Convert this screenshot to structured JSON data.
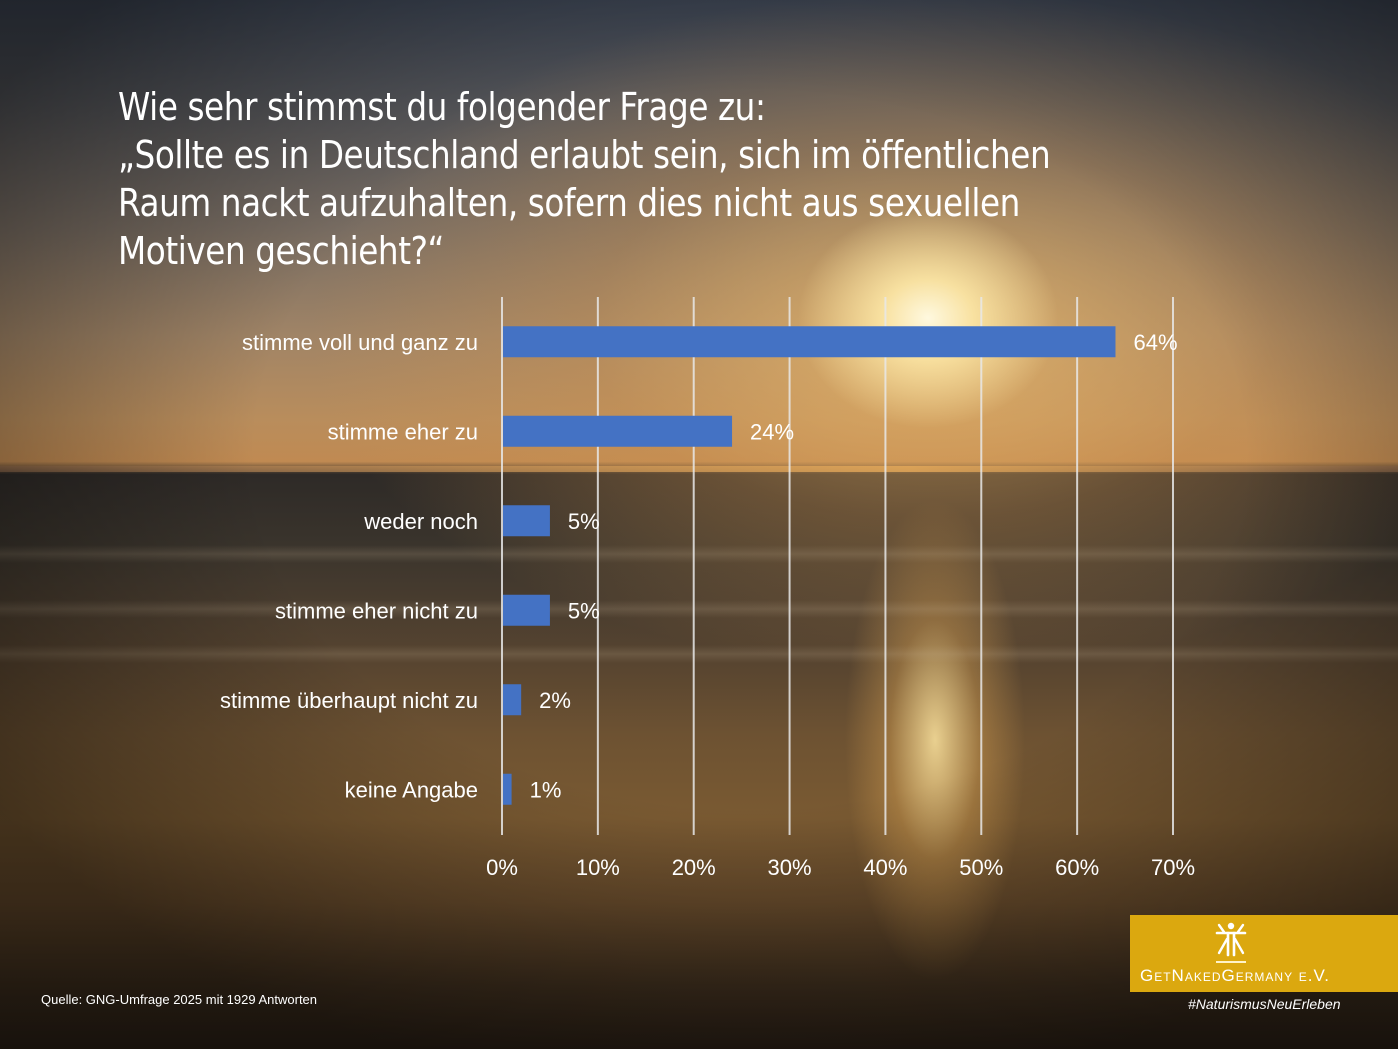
{
  "title": {
    "lines": [
      "Wie sehr stimmst du folgender Frage zu:",
      "„Sollte es in Deutschland erlaubt sein, sich im öffentlichen",
      "Raum nackt aufzuhalten, sofern dies nicht aus sexuellen",
      "Motiven geschieht?“"
    ]
  },
  "chart_data": {
    "type": "bar",
    "orientation": "horizontal",
    "title": "Wie sehr stimmst du folgender Frage zu: „Sollte es in Deutschland erlaubt sein, sich im öffentlichen Raum nackt aufzuhalten, sofern dies nicht aus sexuellen Motiven geschieht?“",
    "categories": [
      "stimme voll und ganz zu",
      "stimme eher zu",
      "weder noch",
      "stimme eher nicht zu",
      "stimme überhaupt nicht zu",
      "keine Angabe"
    ],
    "values": [
      64,
      24,
      5,
      5,
      2,
      1
    ],
    "value_labels": [
      "64%",
      "24%",
      "5%",
      "5%",
      "2%",
      "1%"
    ],
    "unit": "%",
    "xlabel": "",
    "ylabel": "",
    "xlim": [
      0,
      70
    ],
    "x_ticks": [
      0,
      10,
      20,
      30,
      40,
      50,
      60,
      70
    ],
    "x_tick_labels": [
      "0%",
      "10%",
      "20%",
      "30%",
      "40%",
      "50%",
      "60%",
      "70%"
    ],
    "grid": "vertical",
    "legend": "none",
    "bar_color": "#4472c4",
    "grid_color": "#e8e8e8"
  },
  "footer": {
    "source": "Quelle: GNG-Umfrage 2025 mit 1929 Antworten",
    "logo_text": "GetNakedGermany e.V.",
    "hashtag": "#NaturismusNeuErleben",
    "logo_icon": "person-figure-icon",
    "logo_color": "#dba80f"
  }
}
